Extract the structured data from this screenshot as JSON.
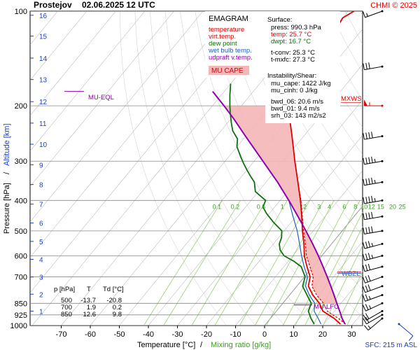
{
  "header": {
    "station": "Prostejov",
    "datetime": "02.06.2025 12 UTC",
    "credit": "CHMI © 2025"
  },
  "legend": {
    "title": "EMAGRAM",
    "items": [
      {
        "label": "temperature",
        "color": "#e00000"
      },
      {
        "label": "virt.temp.",
        "color": "#e00000"
      },
      {
        "label": "dew point",
        "color": "#107010"
      },
      {
        "label": "wet bulb temp.",
        "color": "#2060c0"
      },
      {
        "label": "udpraft v.temp.",
        "color": "#9000b0"
      }
    ],
    "cape_badge": "MU CAPE",
    "cape_badge_bg": "#f4b6b6"
  },
  "info": {
    "surface_header": "Surface:",
    "surface": [
      {
        "text": "press: 990.3 hPa",
        "color": "#000000"
      },
      {
        "text": "temp: 25.7 °C",
        "color": "#e00000"
      },
      {
        "text": "dwpt: 16.7 °C",
        "color": "#107010"
      }
    ],
    "levels": [
      "t-conv: 25.3 °C",
      "t-mxfc: 27.3 °C"
    ],
    "instability_header": "Instability/Shear:",
    "instability": [
      "mu_cape: 1422 J/kg",
      "mu_cinh: 0 J/kg",
      "bwd_06: 20.6 m/s",
      "bwd_01: 9.4 m/s",
      "srh_03: 143 m2/s2"
    ]
  },
  "table": {
    "headers": [
      "p [hPa]",
      "T",
      "Td [°C]"
    ],
    "rows": [
      [
        "500",
        "-13.7",
        "-20.8"
      ],
      [
        "700",
        "1.9",
        "0.2"
      ],
      [
        "850",
        "12.6",
        "9.8"
      ]
    ]
  },
  "markers": {
    "mu_eql": "MU-EQL",
    "mu_lfc": "MU-LFC",
    "wbzl": "WBZL",
    "mxws": "MXWS"
  },
  "footer": {
    "xlabel_temp": "Temperature [°C]",
    "xlabel_sep": "/",
    "xlabel_mix": "Mixing ratio [g/kg]",
    "ylabel_pressure": "Pressure [hPa]",
    "ylabel_sep": "/",
    "ylabel_altitude": "Altitude [km]",
    "sfc": "SFC: 215 m ASL"
  },
  "colors": {
    "temperature": "#e00000",
    "dewpoint": "#107010",
    "wetbulb": "#2060c0",
    "parcel": "#9000b0",
    "cape_fill": "#f4b6b6",
    "mixing": "#9ad070",
    "grid": "#9a9a9a",
    "altitude": "#1a3fc8",
    "wind": "#000000",
    "mxws": "#e00000",
    "sfc_wind": "#1a3fc8"
  },
  "chart_data": {
    "type": "line",
    "x_axis": {
      "label": "Temperature [°C]",
      "range": [
        -80,
        35
      ],
      "ticks": [
        -70,
        -60,
        -50,
        -40,
        -30,
        -20,
        -10,
        0,
        10,
        20,
        30
      ]
    },
    "y_axis": {
      "label": "Pressure [hPa]",
      "scale": "log",
      "range": [
        1000,
        100
      ],
      "ticks": [
        100,
        200,
        300,
        400,
        500,
        600,
        700,
        850,
        925,
        1000
      ]
    },
    "altitude_km": [
      {
        "km": 1,
        "p": 900
      },
      {
        "km": 2,
        "p": 795
      },
      {
        "km": 3,
        "p": 701
      },
      {
        "km": 4,
        "p": 616
      },
      {
        "km": 5,
        "p": 540
      },
      {
        "km": 6,
        "p": 472
      },
      {
        "km": 7,
        "p": 411
      },
      {
        "km": 8,
        "p": 356
      },
      {
        "km": 9,
        "p": 308
      },
      {
        "km": 10,
        "p": 265
      },
      {
        "km": 11,
        "p": 227
      },
      {
        "km": 12,
        "p": 194
      },
      {
        "km": 13,
        "p": 165
      },
      {
        "km": 14,
        "p": 141
      },
      {
        "km": 15,
        "p": 120
      },
      {
        "km": 16,
        "p": 103
      }
    ],
    "mixing_ratio_labels": [
      "0.1",
      "0.2",
      "0.5",
      "1",
      "2",
      "3",
      "4",
      "6",
      "8",
      "10",
      "12",
      "15",
      "20",
      "25"
    ],
    "isotherm_step": 10,
    "series": [
      {
        "name": "temperature",
        "points": [
          [
            25.7,
            990
          ],
          [
            22,
            950
          ],
          [
            16,
            900
          ],
          [
            12.6,
            850
          ],
          [
            8,
            800
          ],
          [
            4,
            750
          ],
          [
            1.9,
            700
          ],
          [
            -2,
            650
          ],
          [
            -6,
            600
          ],
          [
            -9.5,
            550
          ],
          [
            -13.7,
            500
          ],
          [
            -18,
            450
          ],
          [
            -23,
            400
          ],
          [
            -29,
            350
          ],
          [
            -36,
            300
          ],
          [
            -44,
            250
          ],
          [
            -54,
            200
          ],
          [
            -61,
            180
          ],
          [
            -62,
            160
          ],
          [
            -61,
            155
          ],
          [
            -60,
            150
          ],
          [
            -62,
            140
          ],
          [
            -60,
            135
          ],
          [
            -60,
            125
          ],
          [
            -59,
            115
          ],
          [
            -60,
            105
          ],
          [
            -58,
            100
          ]
        ]
      },
      {
        "name": "virt.temp.",
        "points": [
          [
            27.5,
            990
          ],
          [
            23.5,
            950
          ],
          [
            17.5,
            900
          ],
          [
            14,
            850
          ],
          [
            9.3,
            800
          ],
          [
            5.2,
            750
          ],
          [
            3,
            700
          ],
          [
            -1,
            650
          ],
          [
            -5.3,
            600
          ],
          [
            -9,
            550
          ],
          [
            -13.3,
            500
          ],
          [
            -17.8,
            450
          ],
          [
            -22.8,
            400
          ],
          [
            -29,
            350
          ],
          [
            -36,
            300
          ],
          [
            -44,
            250
          ],
          [
            -54,
            200
          ]
        ]
      },
      {
        "name": "dew point",
        "points": [
          [
            16.7,
            990
          ],
          [
            14,
            950
          ],
          [
            11,
            900
          ],
          [
            9.8,
            850
          ],
          [
            6,
            800
          ],
          [
            2,
            750
          ],
          [
            0.2,
            700
          ],
          [
            -4,
            650
          ],
          [
            -8,
            625
          ],
          [
            -13,
            600
          ],
          [
            -16,
            575
          ],
          [
            -18,
            550
          ],
          [
            -19,
            525
          ],
          [
            -20.8,
            500
          ],
          [
            -26,
            470
          ],
          [
            -31,
            440
          ],
          [
            -34,
            420
          ],
          [
            -35,
            400
          ],
          [
            -41,
            375
          ],
          [
            -44,
            350
          ],
          [
            -47,
            335
          ],
          [
            -50,
            320
          ],
          [
            -53,
            305
          ],
          [
            -56,
            290
          ],
          [
            -60,
            270
          ],
          [
            -62,
            255
          ],
          [
            -66,
            240
          ],
          [
            -69,
            225
          ],
          [
            -72,
            210
          ],
          [
            -74,
            200
          ],
          [
            -77,
            185
          ],
          [
            -80,
            170
          ]
        ]
      },
      {
        "name": "wet bulb temp.",
        "points": [
          [
            19,
            990
          ],
          [
            16.5,
            950
          ],
          [
            13,
            900
          ],
          [
            11,
            850
          ],
          [
            6.8,
            800
          ],
          [
            3,
            750
          ],
          [
            1,
            700
          ],
          [
            -3,
            650
          ],
          [
            -7,
            600
          ],
          [
            -11,
            550
          ],
          [
            -15.5,
            500
          ],
          [
            -21,
            450
          ],
          [
            -27,
            400
          ]
        ]
      },
      {
        "name": "udpraft v.temp.",
        "points": [
          [
            27.3,
            990
          ],
          [
            24.7,
            950
          ],
          [
            21.8,
            900
          ],
          [
            18.6,
            850
          ],
          [
            15.3,
            800
          ],
          [
            11.7,
            750
          ],
          [
            7.8,
            700
          ],
          [
            3.5,
            650
          ],
          [
            -1.2,
            600
          ],
          [
            -6.5,
            550
          ],
          [
            -12.5,
            500
          ],
          [
            -19.3,
            450
          ],
          [
            -27,
            400
          ],
          [
            -36,
            350
          ],
          [
            -47,
            300
          ],
          [
            -60,
            250
          ],
          [
            -69,
            220
          ],
          [
            -76,
            200
          ],
          [
            -84,
            180
          ]
        ]
      }
    ],
    "levels": [
      {
        "name": "MU-EQL",
        "p": 180
      },
      {
        "name": "MU-LFC",
        "p": 860
      },
      {
        "name": "WBZL",
        "p": 682
      },
      {
        "name": "MXWS",
        "p": 195
      }
    ],
    "wind_barbs": [
      {
        "p": 990,
        "dir": 130,
        "speed_kt": 10
      },
      {
        "p": 950,
        "dir": 230,
        "speed_kt": 15
      },
      {
        "p": 925,
        "dir": 240,
        "speed_kt": 20
      },
      {
        "p": 900,
        "dir": 240,
        "speed_kt": 20
      },
      {
        "p": 850,
        "dir": 245,
        "speed_kt": 25
      },
      {
        "p": 800,
        "dir": 250,
        "speed_kt": 25
      },
      {
        "p": 750,
        "dir": 250,
        "speed_kt": 30
      },
      {
        "p": 700,
        "dir": 250,
        "speed_kt": 30
      },
      {
        "p": 650,
        "dir": 255,
        "speed_kt": 30
      },
      {
        "p": 600,
        "dir": 255,
        "speed_kt": 35
      },
      {
        "p": 550,
        "dir": 255,
        "speed_kt": 35
      },
      {
        "p": 500,
        "dir": 260,
        "speed_kt": 40
      },
      {
        "p": 450,
        "dir": 260,
        "speed_kt": 40
      },
      {
        "p": 400,
        "dir": 260,
        "speed_kt": 45
      },
      {
        "p": 350,
        "dir": 260,
        "speed_kt": 45
      },
      {
        "p": 300,
        "dir": 260,
        "speed_kt": 45
      },
      {
        "p": 250,
        "dir": 260,
        "speed_kt": 40
      },
      {
        "p": 200,
        "dir": 270,
        "speed_kt": 55
      },
      {
        "p": 150,
        "dir": 260,
        "speed_kt": 30
      },
      {
        "p": 100,
        "dir": 250,
        "speed_kt": 15
      }
    ]
  }
}
